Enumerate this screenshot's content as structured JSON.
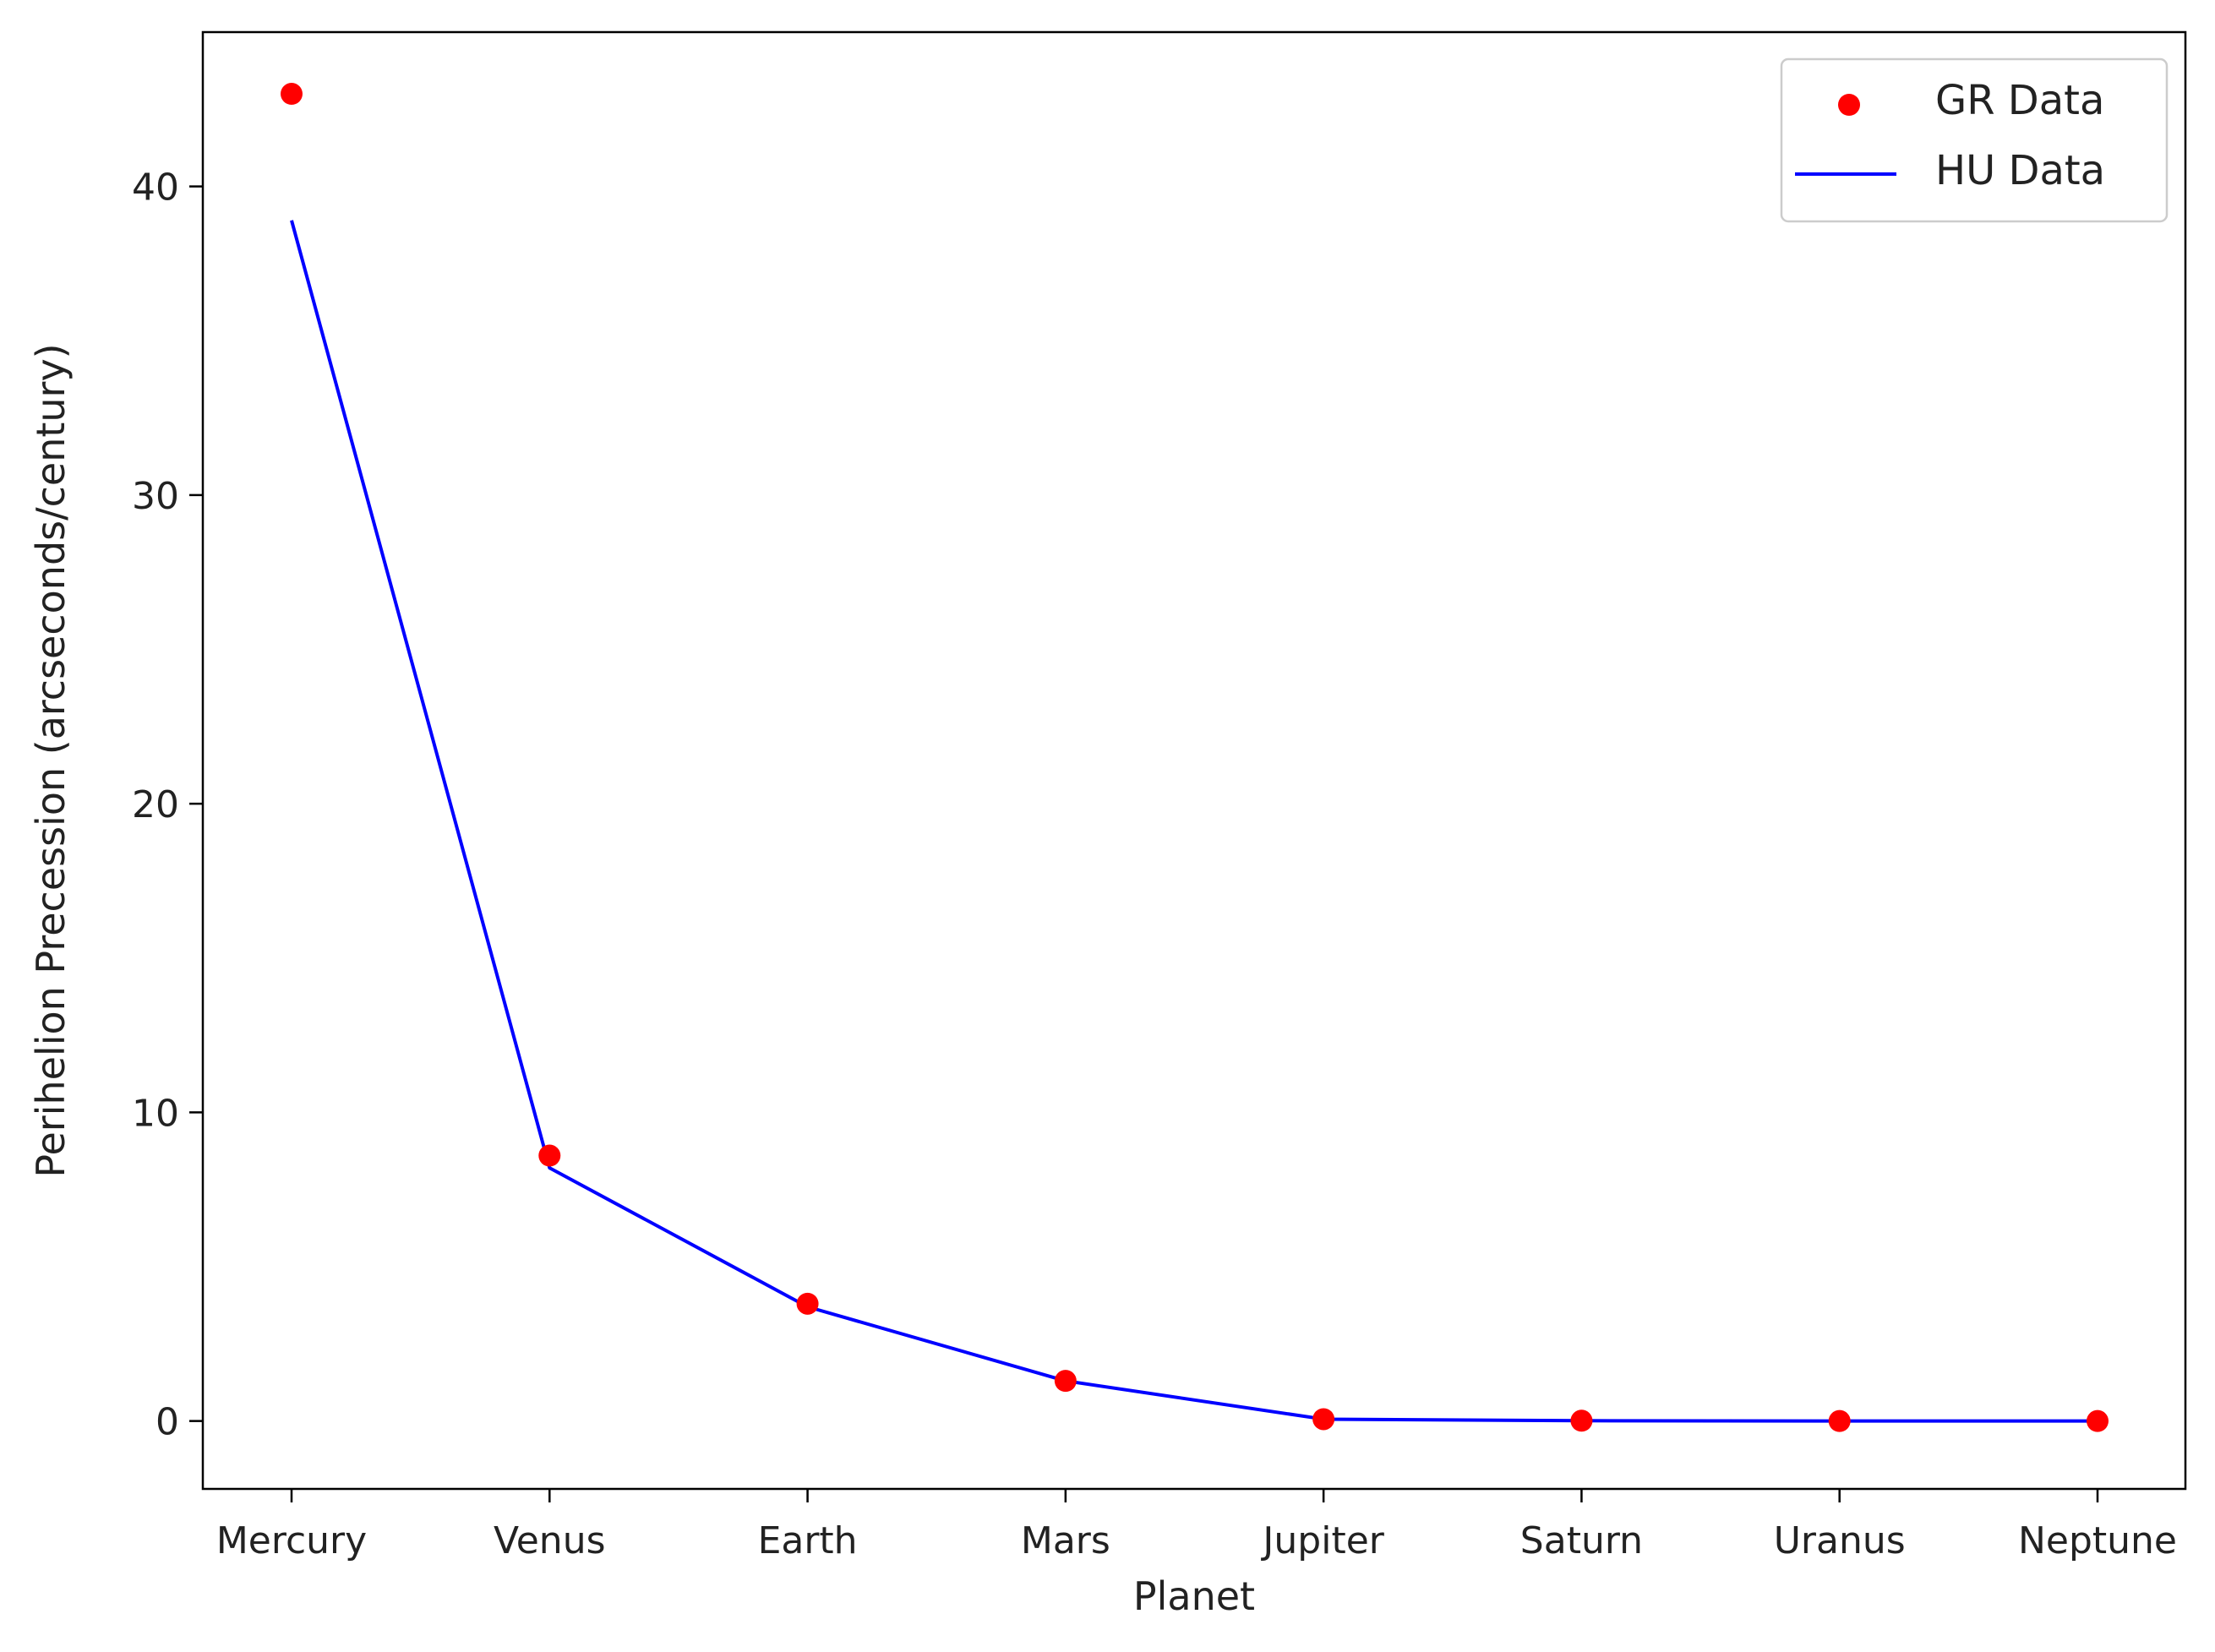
{
  "chart_data": {
    "type": "scatter",
    "title": "",
    "xlabel": "Planet",
    "ylabel": "Perihelion Precession (arcseconds/century)",
    "categories": [
      "Mercury",
      "Venus",
      "Earth",
      "Mars",
      "Jupiter",
      "Saturn",
      "Uranus",
      "Neptune"
    ],
    "ylim": [
      -2.2,
      45
    ],
    "yticks": [
      0,
      10,
      20,
      30,
      40
    ],
    "grid": false,
    "legend_position": "top-right",
    "series": [
      {
        "name": "GR Data",
        "kind": "scatter",
        "color": "#ff0000",
        "values": [
          43.0,
          8.6,
          3.8,
          1.3,
          0.06,
          0.01,
          0.0,
          0.0
        ]
      },
      {
        "name": "HU Data",
        "kind": "line",
        "color": "#0000ff",
        "values": [
          38.9,
          8.2,
          3.7,
          1.3,
          0.06,
          0.01,
          0.0,
          0.0
        ]
      }
    ]
  }
}
